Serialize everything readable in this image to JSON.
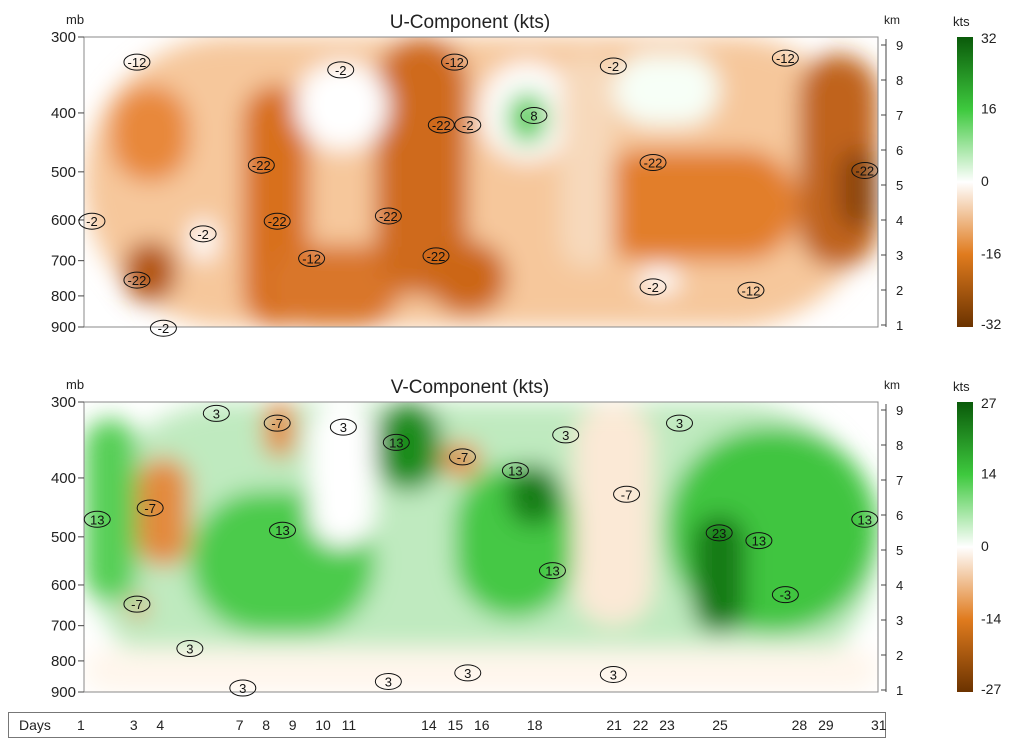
{
  "chart_data": [
    {
      "type": "heatmap",
      "title": "U-Component (kts)",
      "left_unit": "mb",
      "right_unit": "km",
      "left_ticks": [
        "300",
        "400",
        "500",
        "600",
        "700",
        "800",
        "900"
      ],
      "right_ticks": [
        "9",
        "8",
        "7",
        "6",
        "5",
        "4",
        "3",
        "2",
        "1"
      ],
      "colorbar": {
        "unit": "kts",
        "ticks": [
          "32",
          "16",
          "0",
          "-16",
          "-32"
        ],
        "range": [
          -32,
          32
        ],
        "colors": [
          "#6b3300",
          "#e07b1e",
          "#ffffff",
          "#3ec93e",
          "#0a5a0a"
        ]
      },
      "contour_labels": [
        {
          "x": 3,
          "p": 335,
          "v": "-12"
        },
        {
          "x": 10.7,
          "p": 345,
          "v": "-2"
        },
        {
          "x": 15,
          "p": 335,
          "v": "-12"
        },
        {
          "x": 21,
          "p": 340,
          "v": "-2"
        },
        {
          "x": 27.5,
          "p": 330,
          "v": "-12"
        },
        {
          "x": 14.5,
          "p": 425,
          "v": "-22"
        },
        {
          "x": 15.5,
          "p": 425,
          "v": "-2"
        },
        {
          "x": 18,
          "p": 410,
          "v": "8"
        },
        {
          "x": 7.7,
          "p": 495,
          "v": "-22"
        },
        {
          "x": 22.5,
          "p": 490,
          "v": "-22"
        },
        {
          "x": 30.5,
          "p": 505,
          "v": "-22"
        },
        {
          "x": 8.3,
          "p": 612,
          "v": "-22"
        },
        {
          "x": 12.5,
          "p": 600,
          "v": "-22"
        },
        {
          "x": 1.3,
          "p": 612,
          "v": "-2"
        },
        {
          "x": 5.5,
          "p": 642,
          "v": "-2"
        },
        {
          "x": 14.3,
          "p": 698,
          "v": "-22"
        },
        {
          "x": 9.6,
          "p": 705,
          "v": "-12"
        },
        {
          "x": 3,
          "p": 765,
          "v": "-22"
        },
        {
          "x": 22.5,
          "p": 785,
          "v": "-2"
        },
        {
          "x": 26.2,
          "p": 795,
          "v": "-12"
        },
        {
          "x": 4,
          "p": 918,
          "v": "-2"
        }
      ]
    },
    {
      "type": "heatmap",
      "title": "V-Component (kts)",
      "left_unit": "mb",
      "right_unit": "km",
      "left_ticks": [
        "300",
        "400",
        "500",
        "600",
        "700",
        "800",
        "900"
      ],
      "right_ticks": [
        "9",
        "8",
        "7",
        "6",
        "5",
        "4",
        "3",
        "2",
        "1"
      ],
      "colorbar": {
        "unit": "kts",
        "ticks": [
          "27",
          "14",
          "0",
          "-14",
          "-27"
        ],
        "range": [
          -27,
          27
        ],
        "colors": [
          "#6b3300",
          "#e07b1e",
          "#ffffff",
          "#3ec93e",
          "#0a5a0a"
        ]
      },
      "contour_labels": [
        {
          "x": 6,
          "p": 318,
          "v": "3"
        },
        {
          "x": 8.3,
          "p": 330,
          "v": "-7"
        },
        {
          "x": 10.8,
          "p": 335,
          "v": "3"
        },
        {
          "x": 12.8,
          "p": 355,
          "v": "13"
        },
        {
          "x": 15.3,
          "p": 375,
          "v": "-7"
        },
        {
          "x": 19.2,
          "p": 345,
          "v": "3"
        },
        {
          "x": 17.3,
          "p": 395,
          "v": "13"
        },
        {
          "x": 23.5,
          "p": 330,
          "v": "3"
        },
        {
          "x": 21.5,
          "p": 432,
          "v": "-7"
        },
        {
          "x": 3.5,
          "p": 455,
          "v": "-7"
        },
        {
          "x": 1.5,
          "p": 475,
          "v": "13"
        },
        {
          "x": 8.5,
          "p": 495,
          "v": "13"
        },
        {
          "x": 25,
          "p": 500,
          "v": "23"
        },
        {
          "x": 26.5,
          "p": 515,
          "v": "13"
        },
        {
          "x": 30.5,
          "p": 475,
          "v": "13"
        },
        {
          "x": 18.7,
          "p": 577,
          "v": "13"
        },
        {
          "x": 3,
          "p": 655,
          "v": "-7"
        },
        {
          "x": 27.5,
          "p": 632,
          "v": "-3"
        },
        {
          "x": 5,
          "p": 775,
          "v": "3"
        },
        {
          "x": 7,
          "p": 900,
          "v": "3"
        },
        {
          "x": 12.5,
          "p": 878,
          "v": "3"
        },
        {
          "x": 15.5,
          "p": 850,
          "v": "3"
        },
        {
          "x": 21,
          "p": 855,
          "v": "3"
        }
      ]
    }
  ],
  "days_axis": {
    "label": "Days",
    "ticks": [
      "1",
      "3",
      "4",
      "7",
      "8",
      "9",
      "10",
      "11",
      "14",
      "15",
      "16",
      "18",
      "21",
      "22",
      "23",
      "25",
      "28",
      "29",
      "31"
    ]
  }
}
